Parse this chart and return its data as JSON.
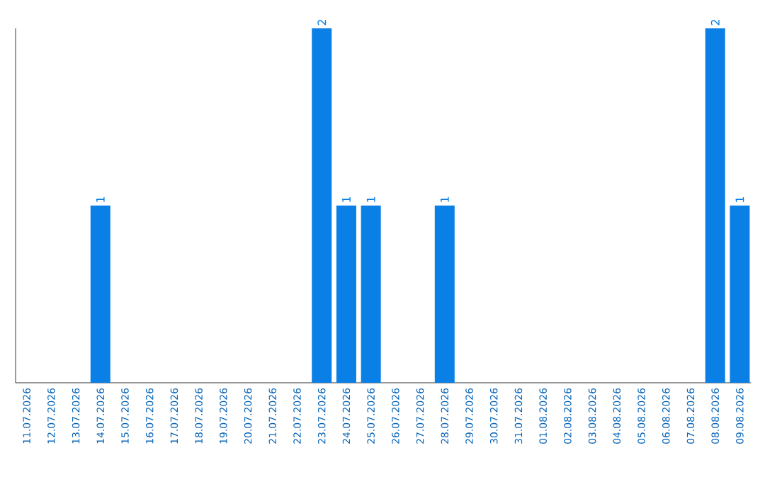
{
  "chart_data": {
    "type": "bar",
    "categories": [
      "11.07.2026",
      "12.07.2026",
      "13.07.2026",
      "14.07.2026",
      "15.07.2026",
      "16.07.2026",
      "17.07.2026",
      "18.07.2026",
      "19.07.2026",
      "20.07.2026",
      "21.07.2026",
      "22.07.2026",
      "23.07.2026",
      "24.07.2026",
      "25.07.2026",
      "26.07.2026",
      "27.07.2026",
      "28.07.2026",
      "29.07.2026",
      "30.07.2026",
      "31.07.2026",
      "01.08.2026",
      "02.08.2026",
      "03.08.2026",
      "04.08.2026",
      "05.08.2026",
      "06.08.2026",
      "07.08.2026",
      "08.08.2026",
      "09.08.2026"
    ],
    "values": [
      0,
      0,
      0,
      1,
      0,
      0,
      0,
      0,
      0,
      0,
      0,
      0,
      2,
      1,
      1,
      0,
      0,
      1,
      0,
      0,
      0,
      0,
      0,
      0,
      0,
      0,
      0,
      0,
      2,
      1
    ],
    "value_labels": [
      null,
      null,
      null,
      "1",
      null,
      null,
      null,
      null,
      null,
      null,
      null,
      null,
      "2",
      "1",
      "1",
      null,
      null,
      "1",
      null,
      null,
      null,
      null,
      null,
      null,
      null,
      null,
      null,
      null,
      "2",
      "1"
    ],
    "color": "#0a7fe6",
    "ylim": [
      0,
      2
    ]
  }
}
